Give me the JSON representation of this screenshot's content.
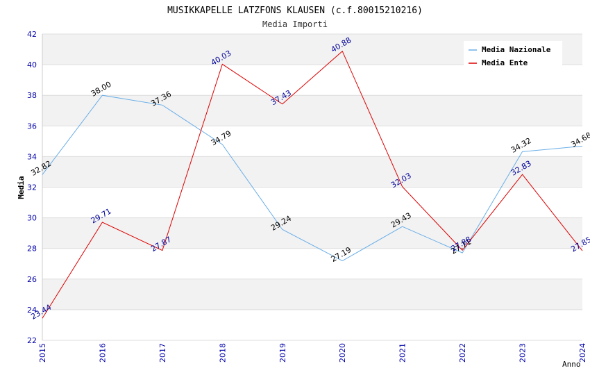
{
  "chart_data": {
    "type": "line",
    "title": "MUSIKKAPELLE LATZFONS KLAUSEN (c.f.80015210216)",
    "subtitle": "Media Importi",
    "xlabel": "Anno",
    "ylabel": "Media",
    "x": [
      "2015",
      "2016",
      "2017",
      "2018",
      "2019",
      "2020",
      "2021",
      "2022",
      "2023",
      "2024"
    ],
    "ylim": [
      22,
      42
    ],
    "yticks": [
      "22",
      "24",
      "26",
      "28",
      "30",
      "32",
      "34",
      "36",
      "38",
      "40",
      "42"
    ],
    "grid": true,
    "legend_position": "top-right",
    "series": [
      {
        "name": "Media Nazionale",
        "color": "#6aaee8",
        "label_color": "#000000",
        "values": [
          32.82,
          38.0,
          37.36,
          34.79,
          29.24,
          27.19,
          29.43,
          27.71,
          34.32,
          34.68
        ],
        "labels": [
          "32.82",
          "38.00",
          "37.36",
          "34.79",
          "29.24",
          "27.19",
          "29.43",
          "27.71",
          "34.32",
          "34.68"
        ]
      },
      {
        "name": "Media Ente",
        "color": "#dd0000",
        "label_color": "#000099",
        "values": [
          23.44,
          29.71,
          27.87,
          40.03,
          37.43,
          40.88,
          32.03,
          27.88,
          32.83,
          27.85
        ],
        "labels": [
          "23.44",
          "29.71",
          "27.87",
          "40.03",
          "37.43",
          "40.88",
          "32.03",
          "27.88",
          "32.83",
          "27.85"
        ]
      }
    ]
  }
}
